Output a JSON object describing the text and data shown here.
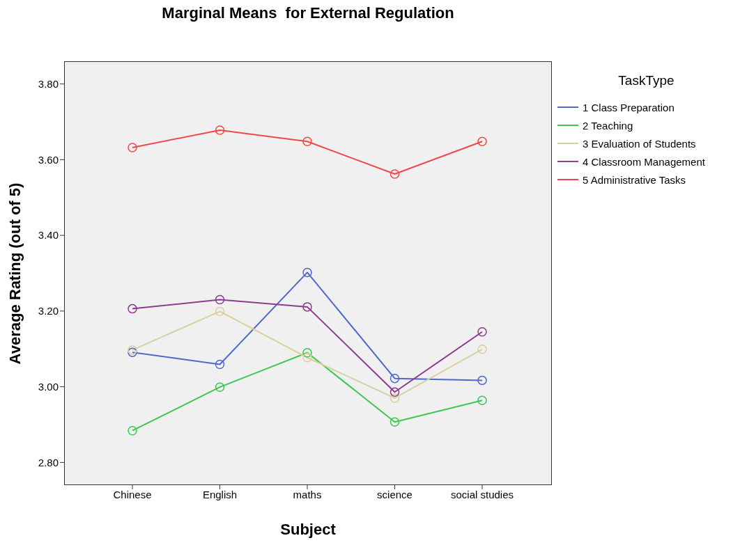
{
  "chart_data": {
    "type": "line",
    "title": "Marginal Means  for External Regulation",
    "xlabel": "Subject",
    "ylabel": "Average Rating (out of 5)",
    "legend_title": "TaskType",
    "categories": [
      "Chinese",
      "English",
      "maths",
      "science",
      "social studies"
    ],
    "series": [
      {
        "name": "1 Class Preparation",
        "color": "#5068c8",
        "values": [
          3.091,
          3.059,
          3.302,
          3.022,
          3.017
        ]
      },
      {
        "name": "2 Teaching",
        "color": "#3cc850",
        "values": [
          2.884,
          2.999,
          3.09,
          2.907,
          2.964
        ]
      },
      {
        "name": "3 Evaluation of Students",
        "color": "#d8d0a0",
        "values": [
          3.097,
          3.199,
          3.077,
          2.97,
          3.099
        ]
      },
      {
        "name": "4 Classroom Management",
        "color": "#8c3c8c",
        "values": [
          3.206,
          3.23,
          3.211,
          2.986,
          3.145
        ]
      },
      {
        "name": "5 Administrative Tasks",
        "color": "#f04848",
        "values": [
          3.632,
          3.678,
          3.648,
          3.562,
          3.648
        ]
      }
    ],
    "ylim": [
      2.74,
      3.86
    ],
    "yticks": [
      {
        "value": 2.8,
        "label": "2.80"
      },
      {
        "value": 3.0,
        "label": "3.00"
      },
      {
        "value": 3.2,
        "label": "3.20"
      },
      {
        "value": 3.4,
        "label": "3.40"
      },
      {
        "value": 3.6,
        "label": "3.60"
      },
      {
        "value": 3.8,
        "label": "3.80"
      }
    ],
    "grid": false,
    "legend": "right",
    "marker": "circle",
    "line_style": "solid"
  }
}
